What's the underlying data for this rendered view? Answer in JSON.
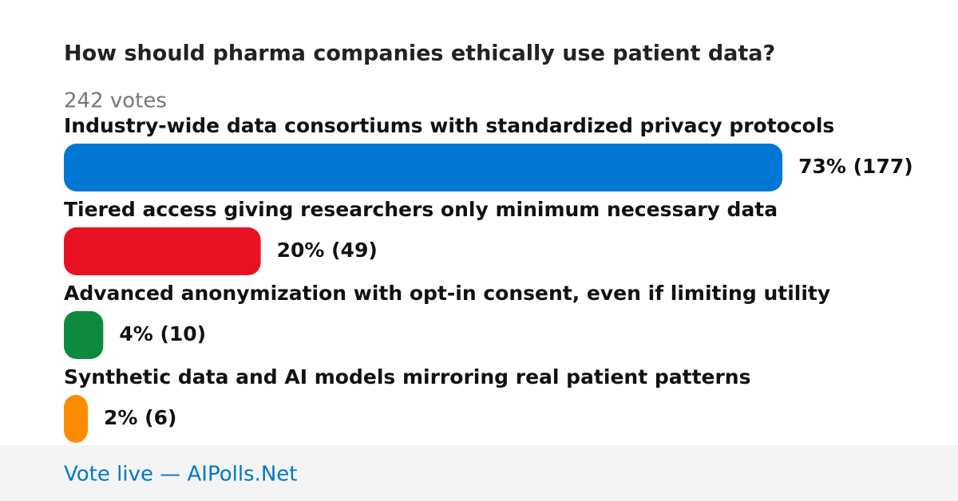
{
  "poll": {
    "title": "How should pharma companies ethically use patient data?",
    "votes_label": "242 votes",
    "options": [
      {
        "label": "Industry-wide data consortiums with standardized privacy protocols",
        "percent": 73,
        "value_label": "73% (177)",
        "color": "#0277d4"
      },
      {
        "label": "Tiered access giving researchers only minimum necessary data",
        "percent": 20,
        "value_label": "20% (49)",
        "color": "#e81224"
      },
      {
        "label": "Advanced anonymization with opt-in consent, even if limiting utility",
        "percent": 4,
        "value_label": "4% (10)",
        "color": "#0e8a3e"
      },
      {
        "label": "Synthetic data and AI models mirroring real patient patterns",
        "percent": 2,
        "value_label": "2% (6)",
        "color": "#ff8c00"
      }
    ],
    "footer": "Vote live — AIPolls.Net"
  }
}
